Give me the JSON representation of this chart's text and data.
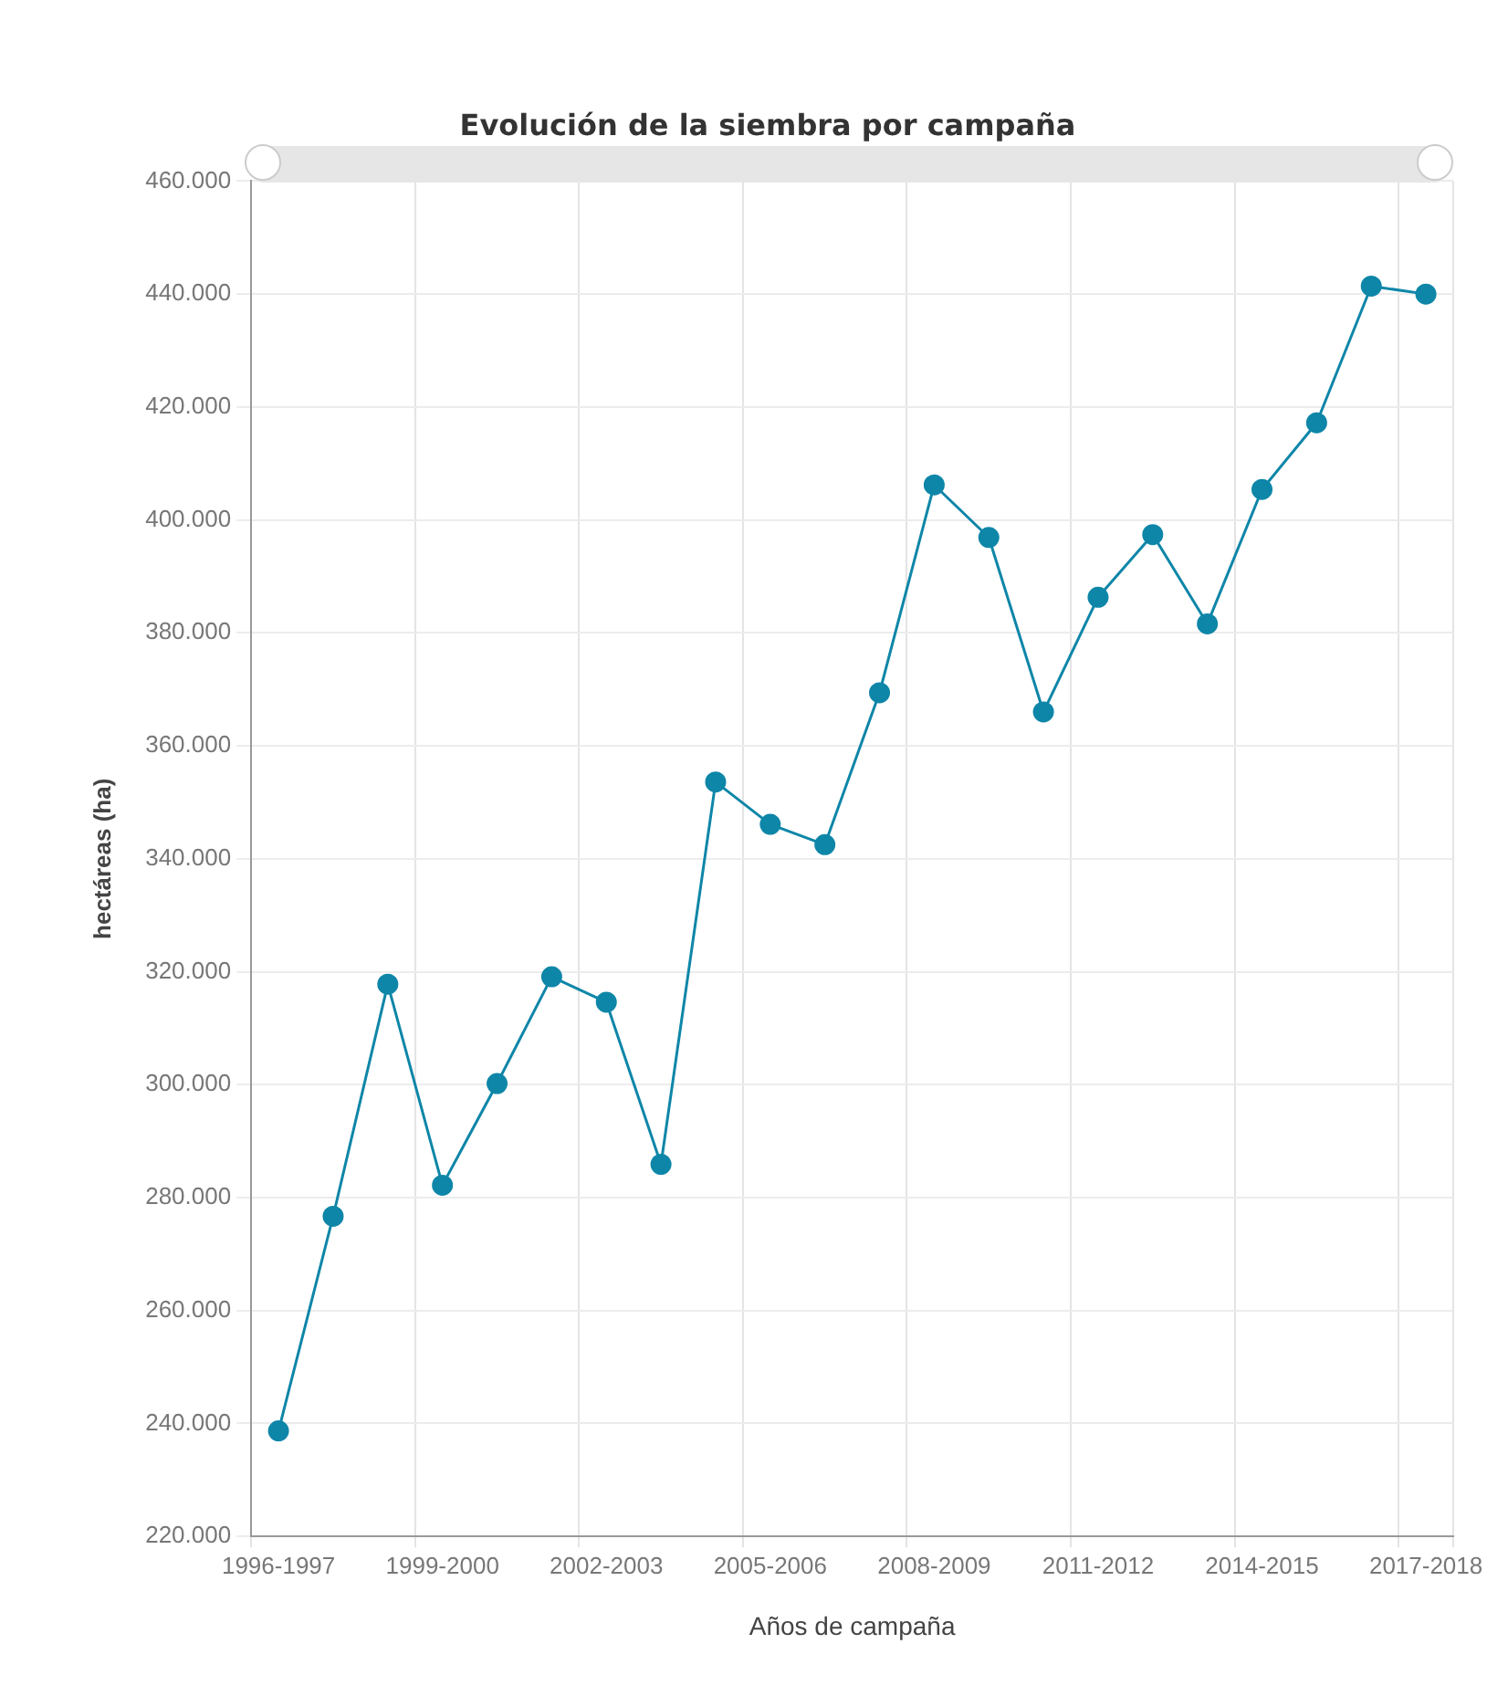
{
  "chart_data": {
    "type": "line",
    "title": "Evolución de la siembra por campaña",
    "xlabel": "Años de campaña",
    "ylabel": "hectáreas (ha)",
    "categories": [
      "1996-1997",
      null,
      null,
      "1999-2000",
      null,
      null,
      "2002-2003",
      null,
      null,
      "2005-2006",
      null,
      null,
      "2008-2009",
      null,
      null,
      "2011-2012",
      null,
      null,
      "2014-2015",
      null,
      null,
      "2017-2018"
    ],
    "series": [
      {
        "color": "#0e86a8",
        "values": [
          238700,
          276700,
          317800,
          282200,
          300200,
          319100,
          314600,
          285900,
          353600,
          346100,
          342500,
          369400,
          406200,
          396900,
          366000,
          386300,
          397400,
          381600,
          405400,
          417200,
          441400,
          440000
        ]
      }
    ],
    "ylim": [
      220000,
      460000
    ],
    "yticks": [
      {
        "value": 220000,
        "label": "220.000"
      },
      {
        "value": 240000,
        "label": "240.000"
      },
      {
        "value": 260000,
        "label": "260.000"
      },
      {
        "value": 280000,
        "label": "280.000"
      },
      {
        "value": 300000,
        "label": "300.000"
      },
      {
        "value": 320000,
        "label": "320.000"
      },
      {
        "value": 340000,
        "label": "340.000"
      },
      {
        "value": 360000,
        "label": "360.000"
      },
      {
        "value": 380000,
        "label": "380.000"
      },
      {
        "value": 400000,
        "label": "400.000"
      },
      {
        "value": 420000,
        "label": "420.000"
      },
      {
        "value": 440000,
        "label": "440.000"
      },
      {
        "value": 460000,
        "label": "460.000"
      }
    ],
    "grid": true,
    "legend": false,
    "marker": "circle",
    "line_style": "solid"
  }
}
